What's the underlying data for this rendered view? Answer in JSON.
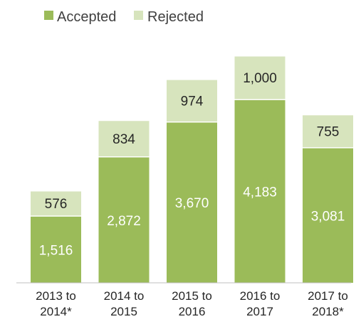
{
  "chart_data": {
    "type": "bar",
    "stacked": true,
    "categories": [
      [
        "2013 to",
        "2014*"
      ],
      [
        "2014 to",
        "2015"
      ],
      [
        "2015 to",
        "2016"
      ],
      [
        "2016 to",
        "2017"
      ],
      [
        "2017 to",
        "2018*"
      ]
    ],
    "series": [
      {
        "name": "Accepted",
        "values": [
          1516,
          2872,
          3670,
          4183,
          3081
        ],
        "labels": [
          "1,516",
          "2,872",
          "3,670",
          "4,183",
          "3,081"
        ],
        "color": "#9bbb59"
      },
      {
        "name": "Rejected",
        "values": [
          576,
          834,
          974,
          1000,
          755
        ],
        "labels": [
          "576",
          "834",
          "974",
          "1,000",
          "755"
        ],
        "color": "#d7e4bd"
      }
    ],
    "legend_position": "top-left",
    "grid": false,
    "ylim": [
      0,
      5500
    ]
  }
}
